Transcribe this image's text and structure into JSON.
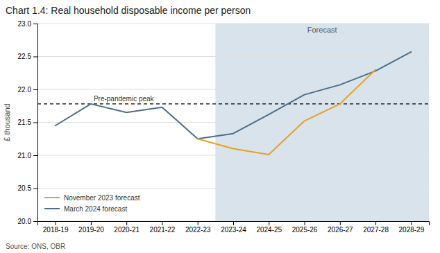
{
  "chart_data": {
    "type": "line",
    "title": "Chart 1.4: Real household disposable income per person",
    "ylabel": "£ thousand",
    "source": "Source: ONS, OBR",
    "categories": [
      "2018-19",
      "2019-20",
      "2020-21",
      "2021-22",
      "2022-23",
      "2023-24",
      "2024-25",
      "2025-26",
      "2026-27",
      "2027-28",
      "2028-29"
    ],
    "series": [
      {
        "name": "November 2023 forecast",
        "color": "#e8a020",
        "values": [
          null,
          null,
          null,
          null,
          21.25,
          21.1,
          21.01,
          21.52,
          21.78,
          22.3,
          null
        ]
      },
      {
        "name": "March 2024 forecast",
        "color": "#4a6f8a",
        "values": [
          21.45,
          21.78,
          21.65,
          21.73,
          21.25,
          21.33,
          21.62,
          21.92,
          22.07,
          22.28,
          22.57
        ]
      }
    ],
    "reference_lines": [
      {
        "value": 21.78,
        "label": "Pre-pandemic peak",
        "line_style": "dashed"
      }
    ],
    "annotations": [
      {
        "text": "Forecast",
        "category": "2023-24",
        "color": "#d8e3ec"
      }
    ],
    "ylim": [
      20.0,
      23.0
    ],
    "yticks": [
      {
        "value": 20.0,
        "label": "20.0"
      },
      20.5,
      {
        "value": 21.0,
        "label": "21.0"
      },
      21.5,
      {
        "value": 22.0,
        "label": "22.0"
      },
      22.5,
      {
        "value": 23.0,
        "label": "23.0"
      }
    ],
    "grid": true,
    "legend": "lower left"
  }
}
